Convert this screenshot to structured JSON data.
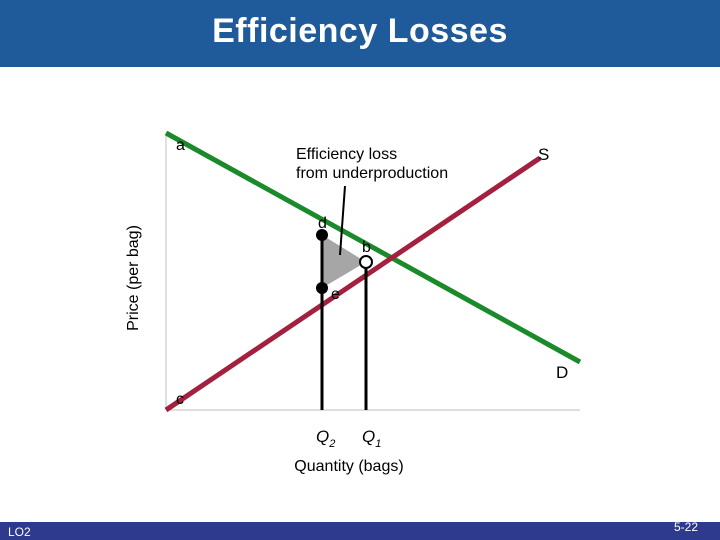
{
  "title": "Efficiency Losses",
  "y_axis_label": "Price (per bag)",
  "x_axis_label": "Quantity (bags)",
  "annotation": [
    "Efficiency loss",
    "from underproduction"
  ],
  "curve_labels": {
    "supply": "S",
    "demand": "D"
  },
  "point_labels": {
    "a": "a",
    "b": "b",
    "c": "c",
    "d": "d",
    "e": "e"
  },
  "quantity_labels": {
    "q2_letter": "Q",
    "q2_sub": "2",
    "q1_letter": "Q",
    "q1_sub": "1"
  },
  "footer": {
    "lo": "LO2",
    "slide_number": "5-22"
  },
  "colors": {
    "header": "#1f5a9a",
    "footer": "#2e3a8e",
    "demand": "#1a8a2a",
    "supply": "#a3203e",
    "loss_area": "#a6a6a6"
  }
}
